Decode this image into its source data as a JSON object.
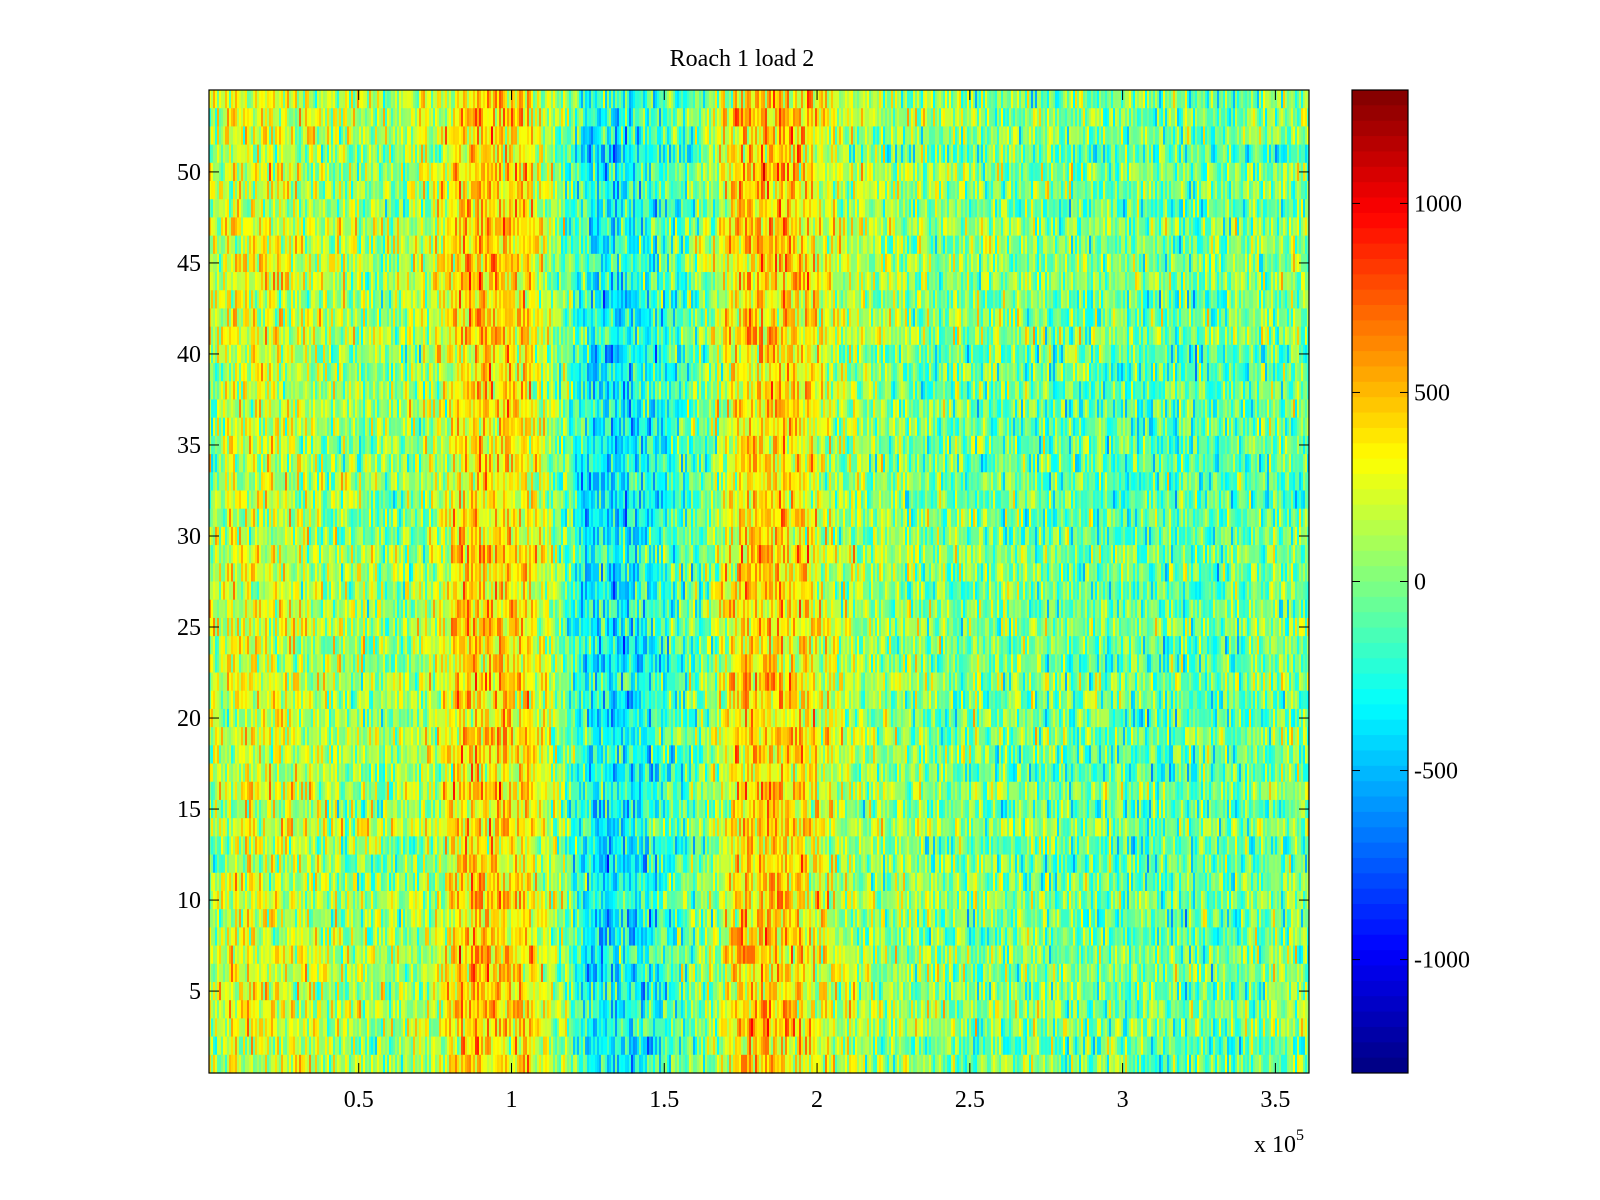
{
  "chart_data": {
    "type": "heatmap",
    "title": "Roach 1 load 2",
    "xlabel": "",
    "ylabel": "",
    "x_exponent_label": "x 10",
    "x_exponent_power": "5",
    "x_scale_factor": 100000,
    "xlim": [
      1000,
      361000
    ],
    "ylim": [
      0.5,
      54.5
    ],
    "x_ticks": [
      {
        "value": 0.5,
        "label": "0.5"
      },
      {
        "value": 1,
        "label": "1"
      },
      {
        "value": 1.5,
        "label": "1.5"
      },
      {
        "value": 2,
        "label": "2"
      },
      {
        "value": 2.5,
        "label": "2.5"
      },
      {
        "value": 3,
        "label": "3"
      },
      {
        "value": 3.5,
        "label": "3.5"
      }
    ],
    "y_ticks": [
      {
        "value": 5,
        "label": "5"
      },
      {
        "value": 10,
        "label": "10"
      },
      {
        "value": 15,
        "label": "15"
      },
      {
        "value": 20,
        "label": "20"
      },
      {
        "value": 25,
        "label": "25"
      },
      {
        "value": 30,
        "label": "30"
      },
      {
        "value": 35,
        "label": "35"
      },
      {
        "value": 40,
        "label": "40"
      },
      {
        "value": 45,
        "label": "45"
      },
      {
        "value": 50,
        "label": "50"
      }
    ],
    "rows": 54,
    "colorbar": {
      "colormap": "jet",
      "clim": [
        -1300,
        1300
      ],
      "ticks": [
        {
          "value": 1000,
          "label": "1000"
        },
        {
          "value": 500,
          "label": "500"
        },
        {
          "value": 0,
          "label": "0"
        },
        {
          "value": -500,
          "label": "-500"
        },
        {
          "value": -1000,
          "label": "-1000"
        }
      ]
    },
    "column_profile": {
      "x": [
        1000,
        10000,
        20000,
        40000,
        60000,
        75000,
        85000,
        95000,
        105000,
        115000,
        125000,
        135000,
        145000,
        155000,
        165000,
        175000,
        185000,
        195000,
        205000,
        220000,
        240000,
        260000,
        280000,
        300000,
        320000,
        340000,
        361000
      ],
      "values": [
        100,
        250,
        230,
        120,
        60,
        150,
        450,
        420,
        350,
        80,
        -280,
        -330,
        -260,
        -120,
        50,
        420,
        460,
        380,
        180,
        60,
        20,
        0,
        -30,
        -50,
        -80,
        -50,
        20
      ]
    },
    "grid": false
  }
}
